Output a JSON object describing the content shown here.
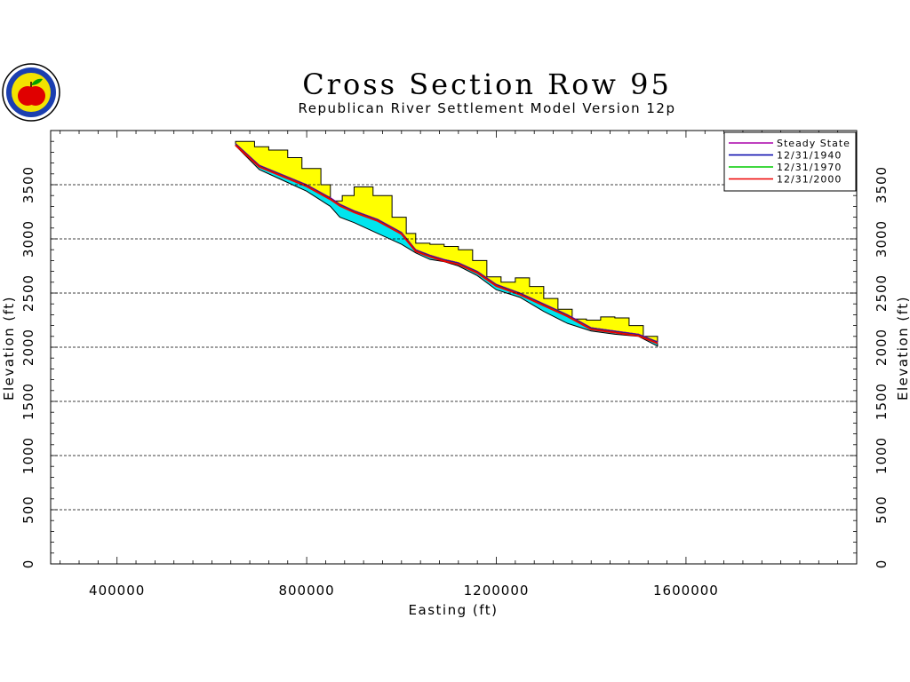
{
  "chart_data": {
    "type": "area",
    "title": "Cross Section Row 95",
    "subtitle": "Republican River Settlement Model Version 12p",
    "xlabel": "Easting (ft)",
    "ylabel": "Elevation (ft)",
    "xlim": [
      260000,
      1960000
    ],
    "ylim": [
      0,
      4000
    ],
    "x_ticks": [
      400000,
      800000,
      1200000,
      1600000
    ],
    "x_tick_labels": [
      "400000",
      "800000",
      "1200000",
      "1600000"
    ],
    "y_ticks": [
      0,
      500,
      1000,
      1500,
      2000,
      2500,
      3000,
      3500
    ],
    "y_tick_labels": [
      "0",
      "500",
      "1000",
      "1500",
      "2000",
      "2500",
      "3000",
      "3500"
    ],
    "grid": "horizontal dashed",
    "legend_position": "top-right",
    "colors": {
      "ground_fill": "#ffff00",
      "saturated_fill": "#00e5ee",
      "outline": "#000000"
    },
    "ground_surface": {
      "x": [
        650000,
        690000,
        720000,
        760000,
        790000,
        830000,
        850000,
        875000,
        900000,
        940000,
        980000,
        1010000,
        1030000,
        1060000,
        1090000,
        1120000,
        1150000,
        1180000,
        1210000,
        1240000,
        1270000,
        1300000,
        1330000,
        1360000,
        1390000,
        1420000,
        1450000,
        1480000,
        1510000,
        1540000
      ],
      "y": [
        3900,
        3850,
        3820,
        3750,
        3650,
        3500,
        3350,
        3400,
        3480,
        3400,
        3200,
        3050,
        2960,
        2950,
        2930,
        2900,
        2800,
        2650,
        2600,
        2640,
        2560,
        2450,
        2350,
        2260,
        2250,
        2280,
        2270,
        2200,
        2100,
        2050
      ]
    },
    "series": [
      {
        "name": "Steady State",
        "color": "#aa00aa",
        "x": [
          650000,
          700000,
          750000,
          800000,
          850000,
          870000,
          900000,
          950000,
          1000000,
          1030000,
          1060000,
          1090000,
          1120000,
          1160000,
          1200000,
          1250000,
          1300000,
          1350000,
          1400000,
          1450000,
          1500000,
          1540000
        ],
        "y": [
          3880,
          3680,
          3590,
          3500,
          3380,
          3320,
          3260,
          3180,
          3060,
          2900,
          2850,
          2810,
          2780,
          2700,
          2580,
          2500,
          2400,
          2300,
          2180,
          2150,
          2120,
          2050
        ]
      },
      {
        "name": "12/31/1940",
        "color": "#0000aa",
        "x": [
          650000,
          700000,
          750000,
          800000,
          850000,
          870000,
          900000,
          950000,
          1000000,
          1030000,
          1060000,
          1090000,
          1120000,
          1160000,
          1200000,
          1250000,
          1300000,
          1350000,
          1400000,
          1450000,
          1500000,
          1540000
        ],
        "y": [
          3875,
          3675,
          3585,
          3495,
          3375,
          3315,
          3255,
          3175,
          3055,
          2895,
          2845,
          2805,
          2775,
          2695,
          2575,
          2495,
          2395,
          2295,
          2175,
          2145,
          2115,
          2045
        ]
      },
      {
        "name": "12/31/1970",
        "color": "#00cc00",
        "x": [
          650000,
          700000,
          750000,
          800000,
          850000,
          870000,
          900000,
          950000,
          1000000,
          1030000,
          1060000,
          1090000,
          1120000,
          1160000,
          1200000,
          1250000,
          1300000,
          1350000,
          1400000,
          1450000,
          1500000,
          1540000
        ],
        "y": [
          3870,
          3670,
          3580,
          3490,
          3370,
          3310,
          3250,
          3170,
          3050,
          2890,
          2840,
          2800,
          2770,
          2690,
          2570,
          2490,
          2390,
          2290,
          2170,
          2140,
          2110,
          2040
        ]
      },
      {
        "name": "12/31/2000",
        "color": "#ee0000",
        "x": [
          650000,
          700000,
          750000,
          800000,
          850000,
          870000,
          900000,
          950000,
          1000000,
          1030000,
          1060000,
          1090000,
          1120000,
          1160000,
          1200000,
          1250000,
          1300000,
          1350000,
          1400000,
          1450000,
          1500000,
          1540000
        ],
        "y": [
          3865,
          3665,
          3575,
          3485,
          3365,
          3305,
          3245,
          3165,
          3045,
          2885,
          2835,
          2795,
          2765,
          2685,
          2565,
          2485,
          2385,
          2285,
          2165,
          2135,
          2105,
          2035
        ]
      }
    ],
    "aquifer_bottom": {
      "x": [
        650000,
        700000,
        750000,
        800000,
        850000,
        870000,
        900000,
        950000,
        1000000,
        1030000,
        1060000,
        1090000,
        1120000,
        1160000,
        1200000,
        1250000,
        1300000,
        1350000,
        1400000,
        1450000,
        1500000,
        1540000
      ],
      "y": [
        3860,
        3640,
        3540,
        3440,
        3300,
        3200,
        3150,
        3050,
        2950,
        2870,
        2810,
        2790,
        2750,
        2660,
        2530,
        2460,
        2330,
        2220,
        2150,
        2120,
        2100,
        2010
      ]
    }
  }
}
